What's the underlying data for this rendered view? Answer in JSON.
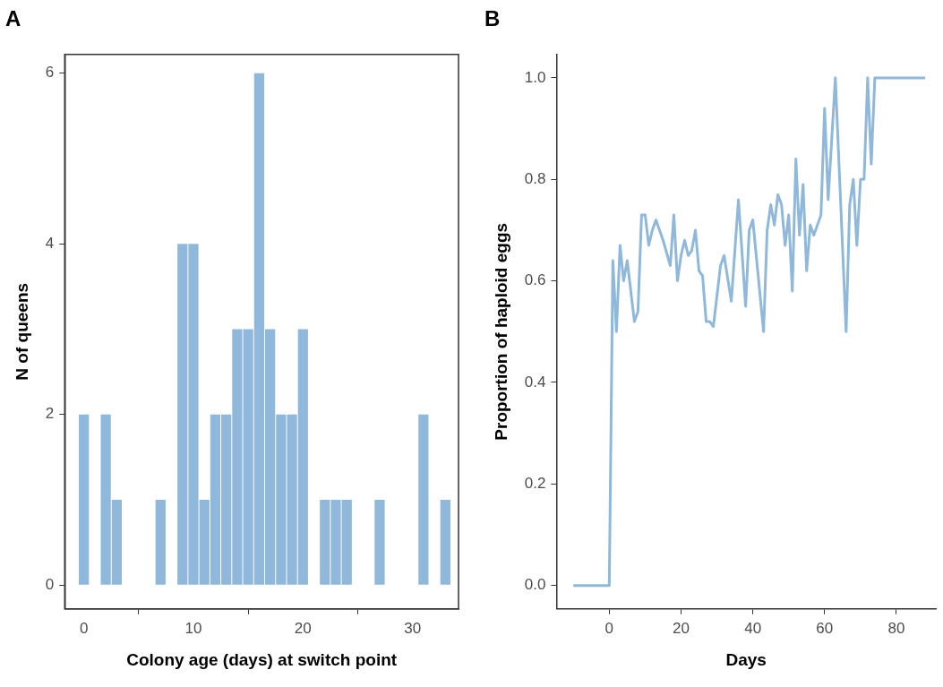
{
  "chart_data": [
    {
      "type": "histogram",
      "title": "A",
      "xlabel": "Colony age (days) at switch point",
      "ylabel": "N of queens",
      "color": "#8fb8da",
      "bins": [
        -0.5,
        0.5,
        1.5,
        2.5,
        3.5,
        4.5,
        5.5,
        6.5,
        7.5,
        8.5,
        9.5,
        10.5,
        11.5,
        12.5,
        13.5,
        14.5,
        15.5,
        16.5,
        17.5,
        18.5,
        19.5,
        20.5,
        21.5,
        22.5,
        23.5,
        24.5,
        25.5,
        26.5,
        27.5,
        28.5,
        29.5,
        30.5,
        31.5,
        32.5,
        33.5
      ],
      "values": [
        2,
        0,
        2,
        1,
        0,
        0,
        0,
        1,
        0,
        4,
        4,
        1,
        2,
        2,
        3,
        3,
        6,
        3,
        2,
        2,
        3,
        0,
        1,
        1,
        1,
        0,
        0,
        1,
        0,
        0,
        0,
        2,
        0,
        1
      ],
      "xlim": [
        -1.75,
        34.2
      ],
      "ylim": [
        -0.28,
        6.22
      ],
      "xticks": [
        0,
        10,
        20,
        30
      ],
      "yticks": [
        0,
        2,
        4,
        6
      ]
    },
    {
      "type": "line",
      "title": "B",
      "xlabel": "Days",
      "ylabel": "Proportion of haploid eggs",
      "color": "#8fb8da",
      "x": [
        -10,
        0,
        1,
        2,
        3,
        4,
        5,
        7,
        8,
        9,
        10,
        11,
        12,
        13,
        14,
        15,
        17,
        18,
        19,
        20,
        21,
        22,
        23,
        24,
        25,
        26,
        27,
        28,
        29,
        31,
        32,
        34,
        36,
        38,
        39,
        40,
        43,
        44,
        45,
        46,
        47,
        48,
        49,
        50,
        51,
        52,
        53,
        54,
        55,
        56,
        57,
        59,
        60,
        61,
        63,
        66,
        67,
        68,
        69,
        70,
        71,
        72,
        73,
        74,
        88
      ],
      "values": [
        0,
        0,
        0.64,
        0.5,
        0.67,
        0.6,
        0.64,
        0.52,
        0.54,
        0.73,
        0.73,
        0.67,
        0.7,
        0.72,
        0.7,
        0.68,
        0.63,
        0.73,
        0.6,
        0.65,
        0.68,
        0.65,
        0.66,
        0.7,
        0.62,
        0.61,
        0.52,
        0.52,
        0.51,
        0.63,
        0.65,
        0.56,
        0.76,
        0.55,
        0.7,
        0.72,
        0.5,
        0.7,
        0.75,
        0.71,
        0.77,
        0.75,
        0.67,
        0.73,
        0.58,
        0.84,
        0.69,
        0.79,
        0.62,
        0.71,
        0.69,
        0.73,
        0.94,
        0.76,
        1,
        0.5,
        0.75,
        0.8,
        0.67,
        0.8,
        0.8,
        1,
        0.83,
        1,
        1
      ],
      "xlim": [
        -14.7,
        91
      ],
      "ylim": [
        -0.046,
        1.046
      ],
      "xticks": [
        0,
        20,
        40,
        60,
        80
      ],
      "yticks": [
        {
          "value": 0,
          "label": "0.0"
        },
        0.2,
        0.4,
        0.6,
        0.8,
        {
          "value": 1,
          "label": "1.0"
        }
      ]
    }
  ]
}
